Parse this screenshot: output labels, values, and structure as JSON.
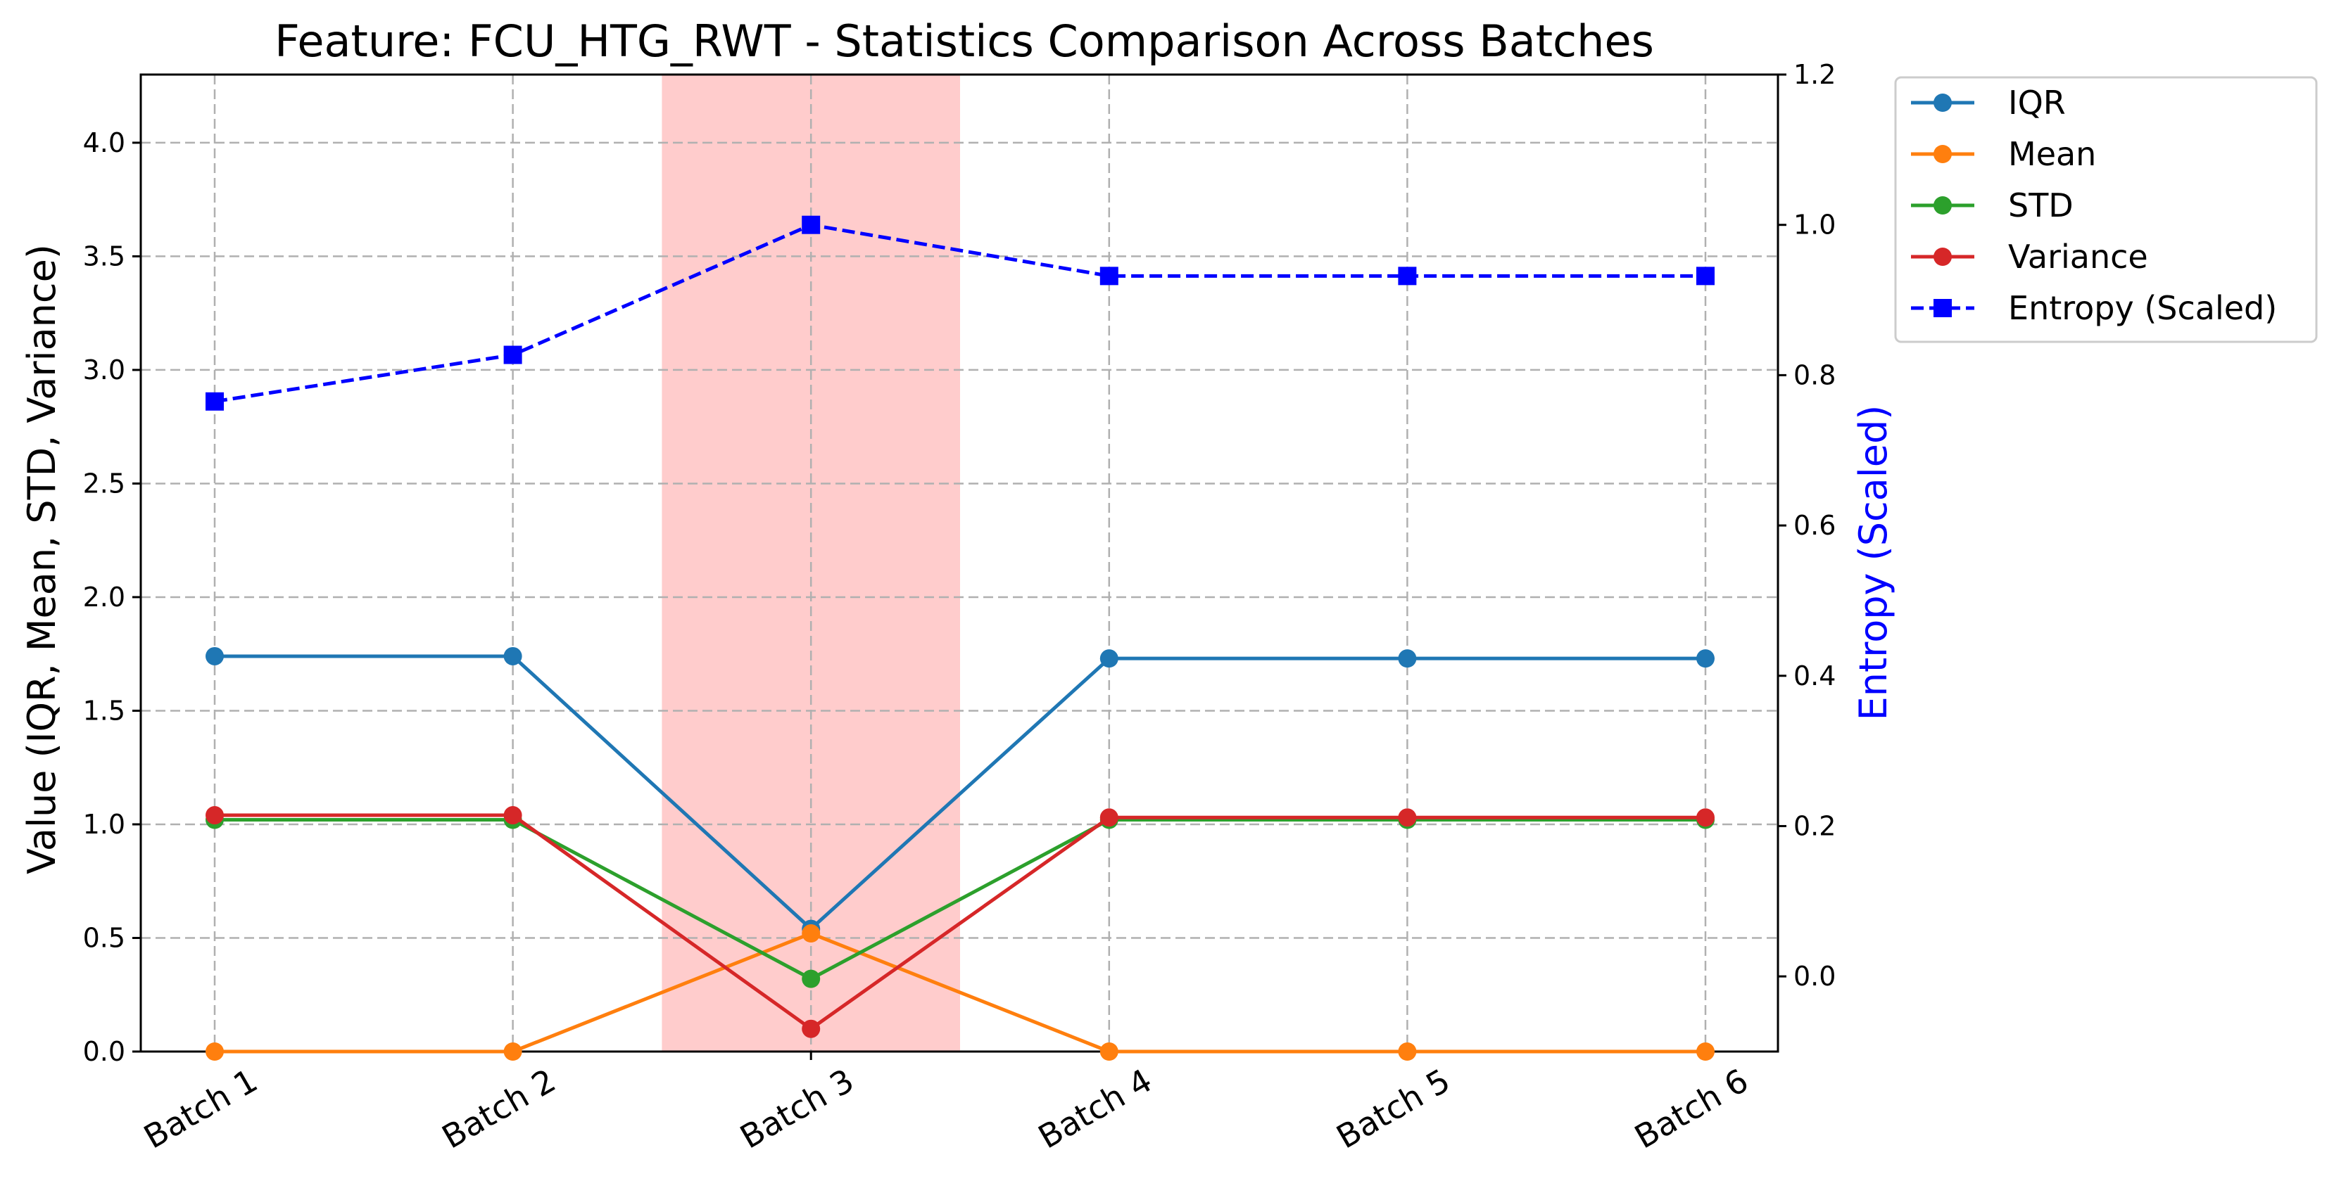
{
  "chart_data": {
    "type": "line",
    "title": "Feature: FCU_HTG_RWT - Statistics Comparison Across Batches",
    "ylabel": "Value (IQR, Mean, STD, Variance)",
    "y2label": "Entropy (Scaled)",
    "categories": [
      "Batch 1",
      "Batch 2",
      "Batch 3",
      "Batch 4",
      "Batch 5",
      "Batch 6"
    ],
    "ylim": [
      0,
      4.3
    ],
    "y2lim": [
      -0.1,
      1.2
    ],
    "yticks": [
      "0.0",
      "0.5",
      "1.0",
      "1.5",
      "2.0",
      "2.5",
      "3.0",
      "3.5",
      "4.0"
    ],
    "y2ticks": [
      "0.0",
      "0.2",
      "0.4",
      "0.6",
      "0.8",
      "1.0",
      "1.2"
    ],
    "highlight_category": "Batch 3",
    "highlight_color": "#ff9999",
    "grid": true,
    "legend_position": "outside-top-right",
    "series": [
      {
        "name": "IQR",
        "axis": "left",
        "color": "#1f77b4",
        "marker": "circle",
        "linestyle": "solid",
        "values": [
          1.74,
          1.74,
          0.54,
          1.73,
          1.73,
          1.73
        ]
      },
      {
        "name": "Mean",
        "axis": "left",
        "color": "#ff7f0e",
        "marker": "circle",
        "linestyle": "solid",
        "values": [
          0.0,
          0.0,
          0.52,
          0.0,
          0.0,
          0.0
        ]
      },
      {
        "name": "STD",
        "axis": "left",
        "color": "#2ca02c",
        "marker": "circle",
        "linestyle": "solid",
        "values": [
          1.02,
          1.02,
          0.32,
          1.02,
          1.02,
          1.02
        ]
      },
      {
        "name": "Variance",
        "axis": "left",
        "color": "#d62728",
        "marker": "circle",
        "linestyle": "solid",
        "values": [
          1.04,
          1.04,
          0.1,
          1.03,
          1.03,
          1.03
        ]
      },
      {
        "name": "Entropy (Scaled)",
        "axis": "right",
        "color": "#0000ff",
        "marker": "square",
        "linestyle": "dashed",
        "values": [
          0.765,
          0.827,
          1.0,
          0.932,
          0.932,
          0.932
        ]
      }
    ]
  }
}
